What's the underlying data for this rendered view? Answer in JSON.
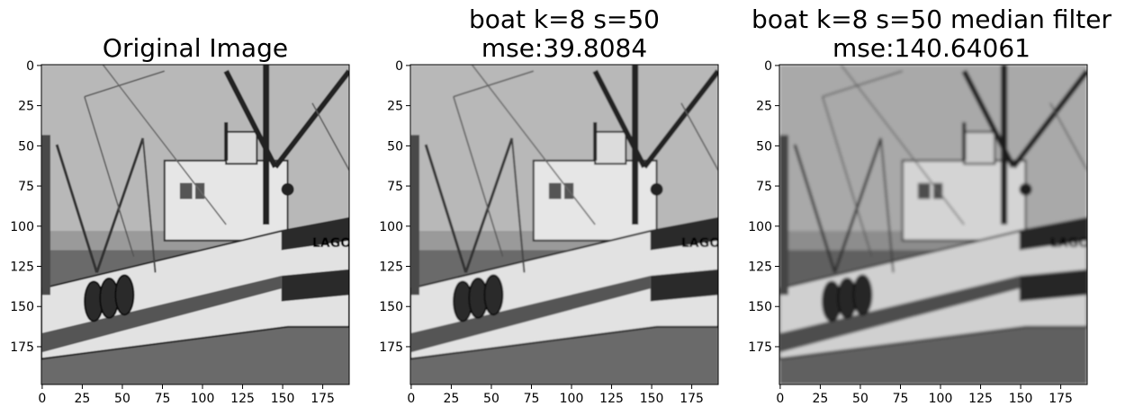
{
  "panels": [
    {
      "id": "original",
      "title_lines": [
        "Original Image"
      ],
      "x_ticks": [
        0,
        25,
        50,
        75,
        100,
        125,
        150,
        175
      ],
      "y_ticks": [
        0,
        25,
        50,
        75,
        100,
        125,
        150,
        175
      ],
      "x_range": [
        0,
        192
      ],
      "y_range": [
        0,
        199
      ]
    },
    {
      "id": "compressed",
      "title_lines": [
        "boat k=8 s=50",
        "mse:39.8084"
      ],
      "x_ticks": [
        0,
        25,
        50,
        75,
        100,
        125,
        150,
        175
      ],
      "y_ticks": [
        0,
        25,
        50,
        75,
        100,
        125,
        150,
        175
      ],
      "x_range": [
        0,
        192
      ],
      "y_range": [
        0,
        199
      ]
    },
    {
      "id": "median-filter",
      "title_lines": [
        "boat k=8 s=50 median filter",
        "mse:140.64061"
      ],
      "x_ticks": [
        0,
        25,
        50,
        75,
        100,
        125,
        150,
        175
      ],
      "y_ticks": [
        0,
        25,
        50,
        75,
        100,
        125,
        150,
        175
      ],
      "x_range": [
        0,
        192
      ],
      "y_range": [
        0,
        199
      ]
    }
  ],
  "boat_lettering": "LAGO",
  "colors": {
    "sky": "#b8b8b8",
    "hull_light": "#e2e2e2",
    "hull_dark": "#2a2a2a",
    "water": "#6a6a6a"
  }
}
